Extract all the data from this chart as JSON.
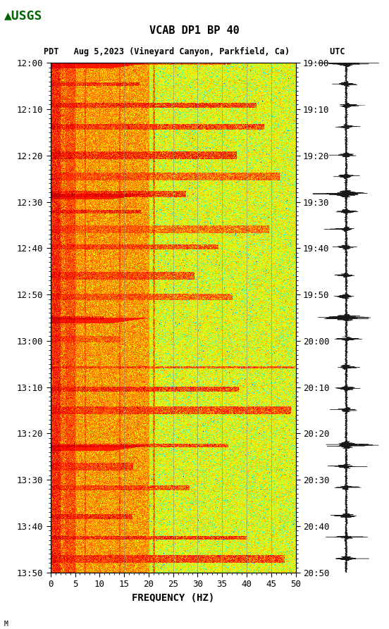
{
  "title_line1": "VCAB DP1 BP 40",
  "title_line2": "PDT   Aug 5,2023 (Vineyard Canyon, Parkfield, Ca)        UTC",
  "xlabel": "FREQUENCY (HZ)",
  "left_time_labels": [
    "12:00",
    "12:10",
    "12:20",
    "12:30",
    "12:40",
    "12:50",
    "13:00",
    "13:10",
    "13:20",
    "13:30",
    "13:40",
    "13:50"
  ],
  "right_time_labels": [
    "19:00",
    "19:10",
    "19:20",
    "19:30",
    "19:40",
    "19:50",
    "20:00",
    "20:10",
    "20:20",
    "20:30",
    "20:40",
    "20:50"
  ],
  "freq_ticks": [
    0,
    5,
    10,
    15,
    20,
    25,
    30,
    35,
    40,
    45,
    50
  ],
  "freq_min": 0,
  "freq_max": 50,
  "n_time": 720,
  "n_freq": 400,
  "background_color": "#ffffff",
  "colormap": "jet",
  "vgrid_color": "#808080",
  "vgrid_freqs": [
    5,
    10,
    15,
    20,
    25,
    30,
    35,
    40,
    45
  ],
  "usgs_green": "#006400",
  "tick_label_fontsize": 9,
  "title_fontsize": 11
}
